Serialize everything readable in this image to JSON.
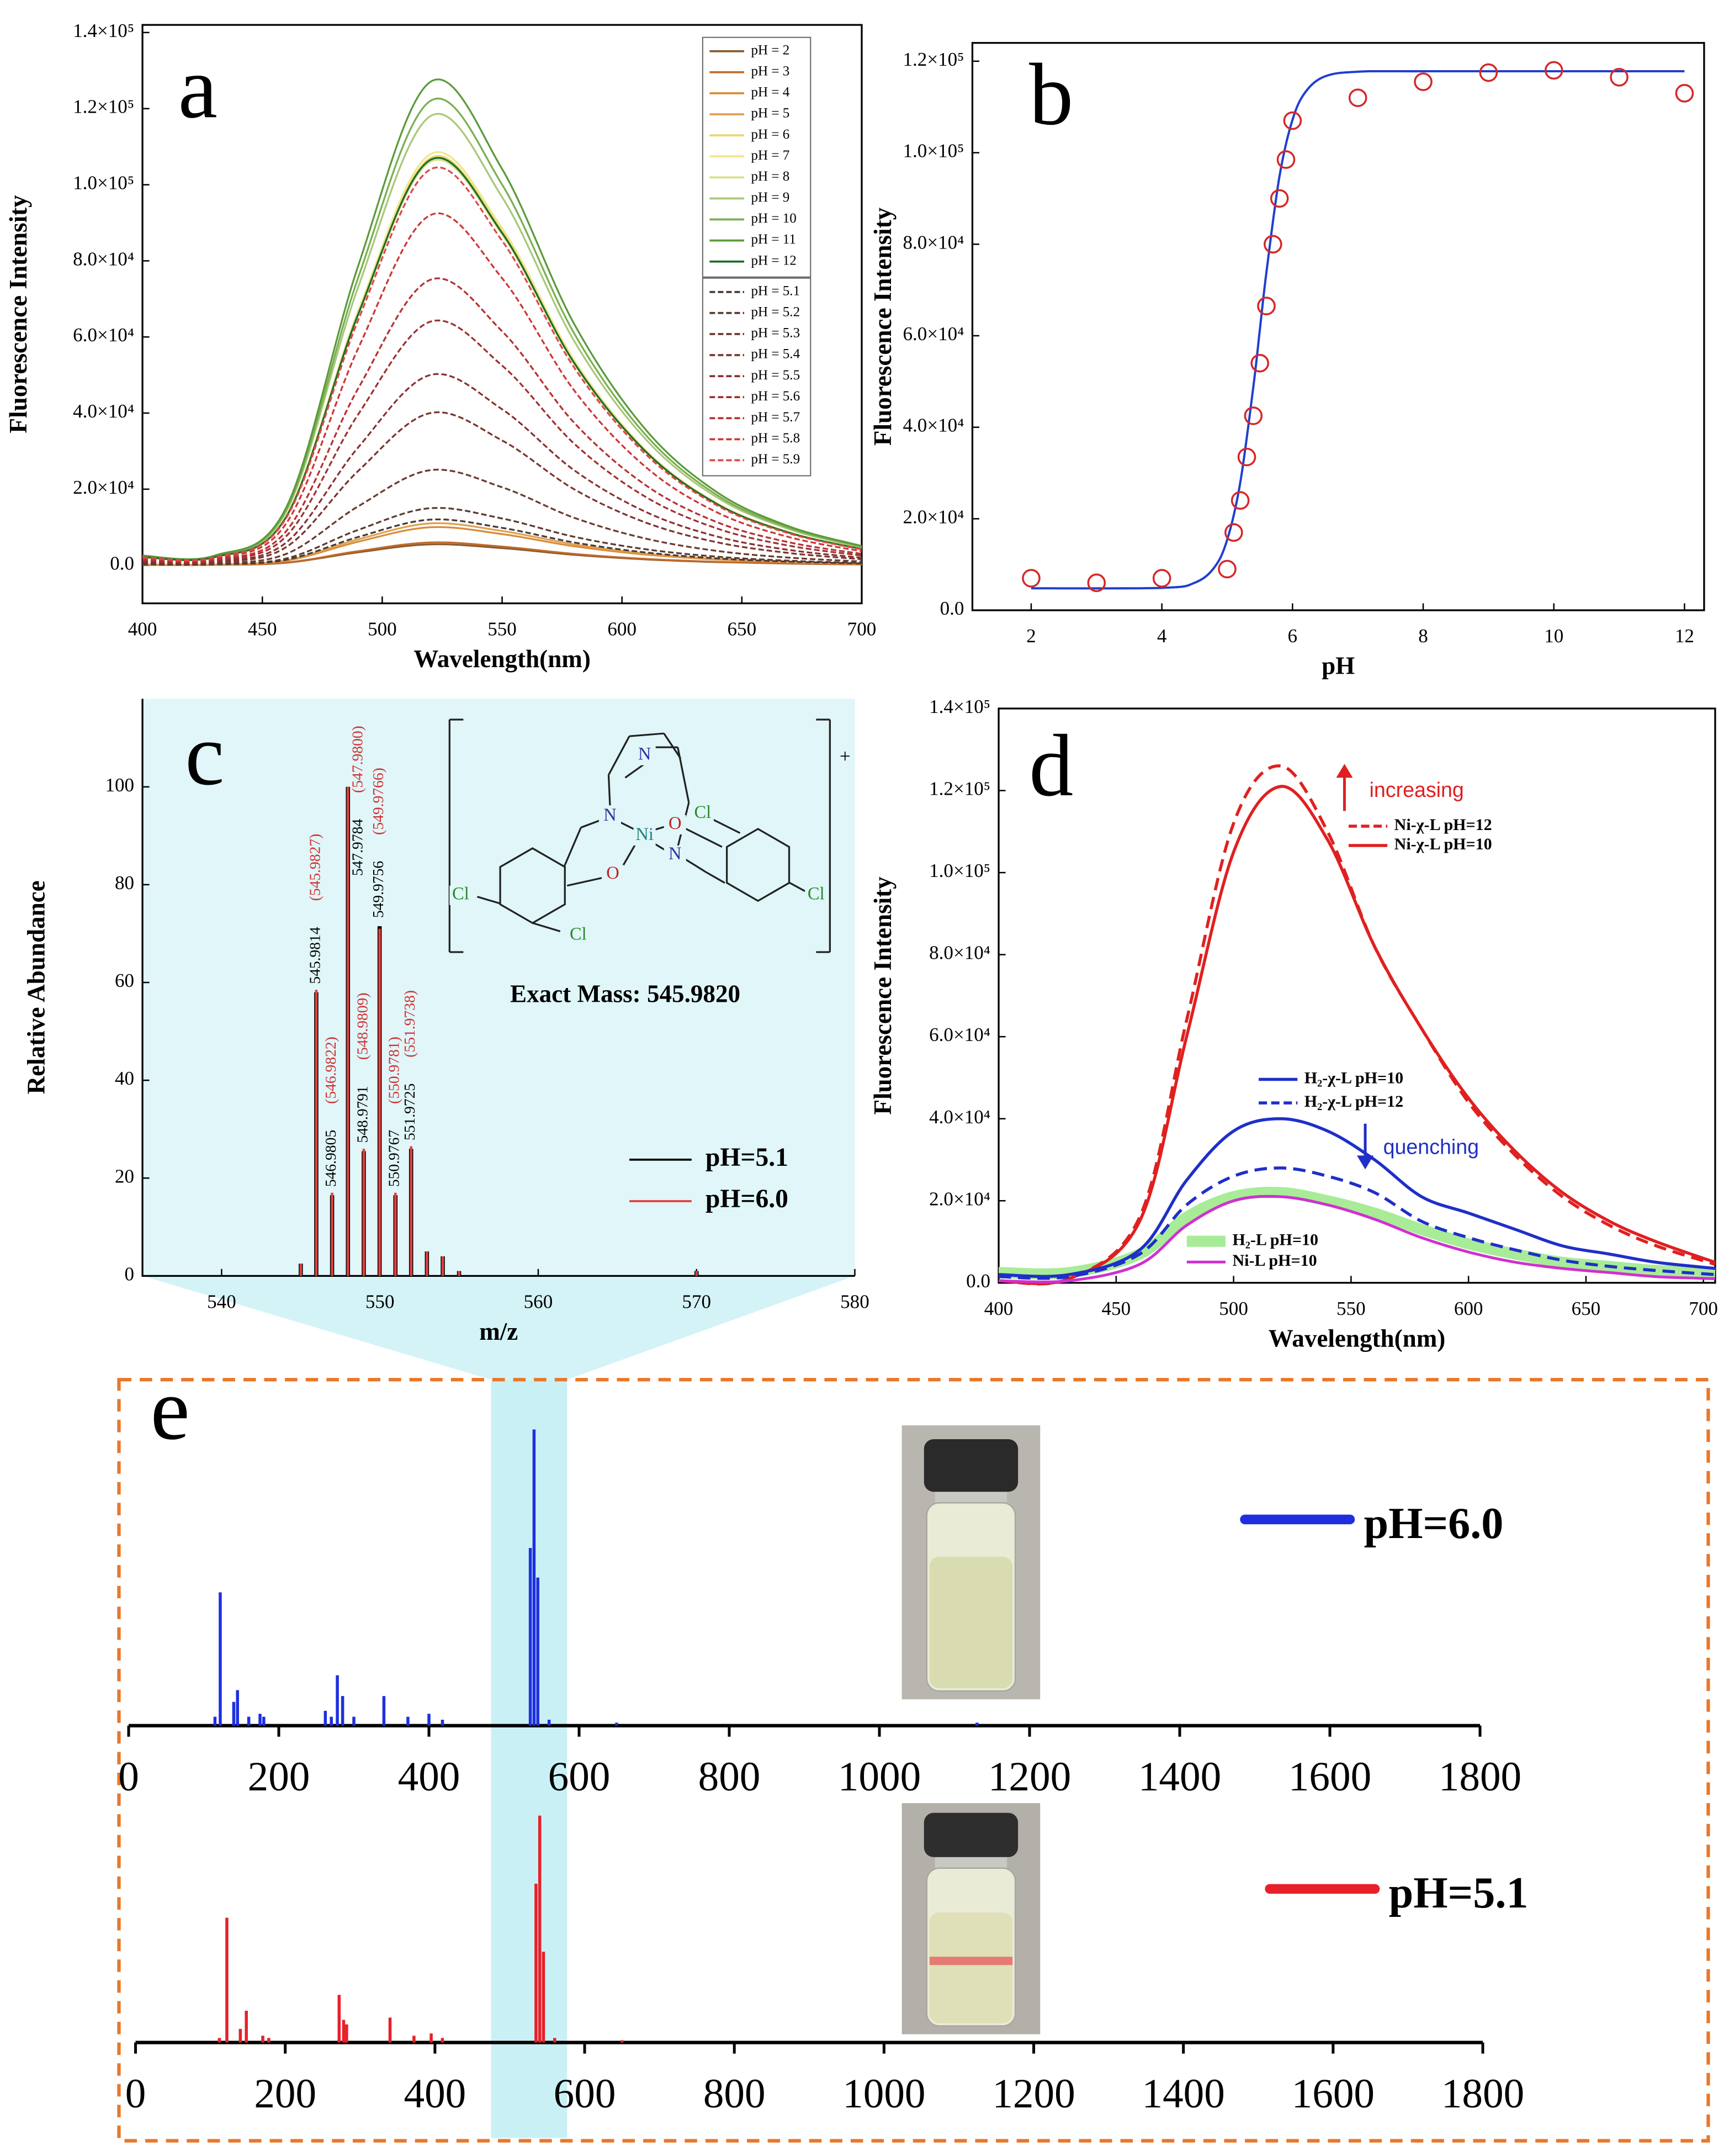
{
  "chart_data": [
    {
      "type": "line",
      "panel_label": "a",
      "x_label": "Wavelength(nm)",
      "y_label": "Fluorescence Intensity",
      "x": [
        400,
        430,
        460,
        490,
        520,
        550,
        580,
        610,
        640,
        670,
        700
      ],
      "xlim": [
        400,
        700
      ],
      "xticks": [
        400,
        450,
        500,
        550,
        600,
        650,
        700
      ],
      "ylim": [
        -10000,
        142000
      ],
      "yticks": [
        {
          "value": 0,
          "label": "0.0"
        },
        {
          "value": 20000,
          "label": "2.0×10⁴"
        },
        {
          "value": 40000,
          "label": "4.0×10⁴"
        },
        {
          "value": 60000,
          "label": "6.0×10⁴"
        },
        {
          "value": 80000,
          "label": "8.0×10⁴"
        },
        {
          "value": 100000,
          "label": "1.0×10⁵"
        },
        {
          "value": 120000,
          "label": "1.2×10⁵"
        },
        {
          "value": 140000,
          "label": "1.4×10⁵"
        }
      ],
      "legend": "upper right",
      "series": [
        {
          "name": "pH = 2",
          "color": "#8b5a2b",
          "dashed": false,
          "values": [
            110,
            110,
            660,
            3410,
            5500,
            4510,
            2750,
            1540,
            825,
            440,
            220
          ]
        },
        {
          "name": "pH = 3",
          "color": "#c06a2b",
          "dashed": false,
          "values": [
            120,
            120,
            720,
            3720,
            6000,
            4920,
            3000,
            1680,
            900,
            480,
            240
          ]
        },
        {
          "name": "pH = 4",
          "color": "#d98b3a",
          "dashed": false,
          "values": [
            200,
            200,
            1200,
            6200,
            10000,
            8200,
            5000,
            2800,
            1500,
            800,
            400
          ]
        },
        {
          "name": "pH = 5",
          "color": "#e0a050",
          "dashed": false,
          "values": [
            220,
            220,
            1320,
            6820,
            11000,
            9020,
            5500,
            3080,
            1650,
            880,
            440
          ]
        },
        {
          "name": "pH = 6",
          "color": "#e8d870",
          "dashed": false,
          "values": [
            2140,
            2140,
            12840,
            66340,
            107000,
            87740,
            53500,
            29960,
            16050,
            8560,
            4280
          ]
        },
        {
          "name": "pH = 7",
          "color": "#f0e68c",
          "dashed": false,
          "values": [
            2160,
            2160,
            12960,
            66960,
            108000,
            88560,
            54000,
            30240,
            16200,
            8640,
            4320
          ]
        },
        {
          "name": "pH = 8",
          "color": "#d8e08a",
          "dashed": false,
          "values": [
            2120,
            2120,
            12720,
            65720,
            106000,
            86920,
            53000,
            29680,
            15900,
            8480,
            4240
          ]
        },
        {
          "name": "pH = 9",
          "color": "#a8c878",
          "dashed": false,
          "values": [
            2360,
            2360,
            14160,
            73160,
            118000,
            96760,
            59000,
            33040,
            17700,
            9440,
            4720
          ]
        },
        {
          "name": "pH = 10",
          "color": "#7aaf50",
          "dashed": false,
          "values": [
            2440,
            2440,
            14640,
            75640,
            122000,
            100040,
            61000,
            34160,
            18300,
            9760,
            4880
          ]
        },
        {
          "name": "pH = 11",
          "color": "#5a9a3a",
          "dashed": false,
          "values": [
            2540,
            2540,
            15240,
            78740,
            127000,
            104140,
            63500,
            35560,
            19050,
            10160,
            5080
          ]
        },
        {
          "name": "pH = 12",
          "color": "#1e6b2a",
          "dashed": false,
          "values": [
            2130,
            2130,
            12780,
            66030,
            106500,
            87330,
            53250,
            29820,
            15980,
            8520,
            4260
          ]
        },
        {
          "name": "pH = 5.1",
          "color": "#4a3a30",
          "dashed": true,
          "values": [
            240,
            240,
            1440,
            7440,
            12000,
            9840,
            6000,
            3360,
            1800,
            960,
            480
          ]
        },
        {
          "name": "pH = 5.2",
          "color": "#5a3a30",
          "dashed": true,
          "values": [
            300,
            300,
            1800,
            9300,
            15000,
            12300,
            7500,
            4200,
            2250,
            1200,
            600
          ]
        },
        {
          "name": "pH = 5.3",
          "color": "#6b3a2e",
          "dashed": true,
          "values": [
            500,
            500,
            3000,
            15500,
            25000,
            20500,
            12500,
            7000,
            3750,
            2000,
            1000
          ]
        },
        {
          "name": "pH = 5.4",
          "color": "#7a3530",
          "dashed": true,
          "values": [
            800,
            800,
            4800,
            24800,
            40000,
            32800,
            20000,
            11200,
            6000,
            3200,
            1600
          ]
        },
        {
          "name": "pH = 5.5",
          "color": "#8b3030",
          "dashed": true,
          "values": [
            1000,
            1000,
            6000,
            31000,
            50000,
            41000,
            25000,
            14000,
            7500,
            4000,
            2000
          ]
        },
        {
          "name": "pH = 5.6",
          "color": "#a03030",
          "dashed": true,
          "values": [
            1280,
            1280,
            7680,
            39680,
            64000,
            52480,
            32000,
            17920,
            9600,
            5120,
            2560
          ]
        },
        {
          "name": "pH = 5.7",
          "color": "#b83030",
          "dashed": true,
          "values": [
            1500,
            1500,
            9000,
            46500,
            75000,
            61500,
            37500,
            21000,
            11250,
            6000,
            3000
          ]
        },
        {
          "name": "pH = 5.8",
          "color": "#d03535",
          "dashed": true,
          "values": [
            1840,
            1840,
            11040,
            57040,
            92000,
            75440,
            46000,
            25760,
            13800,
            7360,
            3680
          ]
        },
        {
          "name": "pH = 5.9",
          "color": "#e04848",
          "dashed": true,
          "values": [
            2080,
            2080,
            12480,
            64480,
            104000,
            85280,
            52000,
            29120,
            15600,
            8320,
            4160
          ]
        }
      ]
    },
    {
      "type": "scatter",
      "panel_label": "b",
      "x_label": "pH",
      "y_label": "Fluorescence Intensity",
      "xlim": [
        1.1,
        12.3
      ],
      "xticks": [
        2,
        4,
        6,
        8,
        10,
        12
      ],
      "ylim": [
        0,
        124000
      ],
      "yticks": [
        {
          "value": 0,
          "label": "0.0"
        },
        {
          "value": 20000,
          "label": "2.0×10⁴"
        },
        {
          "value": 40000,
          "label": "4.0×10⁴"
        },
        {
          "value": 60000,
          "label": "6.0×10⁴"
        },
        {
          "value": 80000,
          "label": "8.0×10⁴"
        },
        {
          "value": 100000,
          "label": "1.0×10⁵"
        },
        {
          "value": 120000,
          "label": "1.2×10⁵"
        }
      ],
      "points": {
        "color": "#d62728",
        "x": [
          2,
          3,
          4,
          5,
          5.1,
          5.2,
          5.3,
          5.4,
          5.5,
          5.6,
          5.7,
          5.8,
          5.9,
          6,
          7,
          8,
          9,
          10,
          11,
          12
        ],
        "values": [
          7000,
          6000,
          7000,
          9000,
          17000,
          24000,
          33500,
          42500,
          54000,
          66500,
          80000,
          90000,
          98500,
          107000,
          112000,
          115500,
          117500,
          118000,
          116500,
          113000
        ]
      },
      "fit": {
        "color": "#1f3fcf",
        "x": [
          2,
          4,
          4.5,
          4.8,
          5,
          5.2,
          5.4,
          5.5,
          5.6,
          5.8,
          6,
          6.2,
          6.5,
          7,
          8,
          12
        ],
        "values": [
          4800,
          4900,
          6000,
          9300,
          15400,
          27900,
          48800,
          61300,
          73800,
          94800,
          107200,
          113300,
          116700,
          117700,
          117800,
          117800
        ]
      }
    },
    {
      "type": "stick",
      "panel_label": "c",
      "x_label": "m/z",
      "y_label": "Relative Abundance",
      "xlim": [
        535,
        580
      ],
      "xticks": [
        540,
        550,
        560,
        570,
        580
      ],
      "ylim": [
        0,
        118
      ],
      "yticks": [
        0,
        20,
        40,
        60,
        80,
        100
      ],
      "background": "#e0f6f9",
      "series": [
        {
          "name": "pH=5.1",
          "color": "#000000",
          "x": [
            545.0,
            545.98,
            546.98,
            547.98,
            548.98,
            549.98,
            550.98,
            551.97,
            552.97,
            553.97,
            555.0,
            570.0
          ],
          "values": [
            2.5,
            58,
            16.5,
            100,
            25.5,
            71.5,
            16.5,
            26,
            5,
            4,
            1,
            1
          ]
        },
        {
          "name": "pH=6.0",
          "color": "#e04040",
          "x": [
            545.0,
            545.98,
            546.98,
            547.98,
            548.98,
            549.98,
            550.98,
            551.97,
            552.97,
            553.97,
            555.0,
            570.0
          ],
          "values": [
            2.5,
            58.5,
            17,
            100,
            26,
            71,
            17,
            26.5,
            5,
            4,
            1,
            1
          ]
        }
      ],
      "peak_labels": [
        {
          "measured": "545.9814",
          "calculated": "(545.9827)"
        },
        {
          "measured": "546.9805",
          "calculated": "(546.9822)"
        },
        {
          "measured": "547.9784",
          "calculated": "(547.9800)"
        },
        {
          "measured": "548.9791",
          "calculated": "(548.9809)"
        },
        {
          "measured": "549.9756",
          "calculated": "(549.9766)"
        },
        {
          "measured": "550.9767",
          "calculated": "(550.9781)"
        },
        {
          "measured": "551.9725",
          "calculated": "(551.9738)"
        }
      ],
      "structure": {
        "atoms": [
          "N",
          "N",
          "Ni",
          "O",
          "O",
          "N",
          "Cl",
          "Cl",
          "Cl",
          "Cl"
        ],
        "charge": "+"
      },
      "annotation": "Exact Mass: 545.9820"
    },
    {
      "type": "line",
      "panel_label": "d",
      "x_label": "Wavelength(nm)",
      "y_label": "Fluorescence Intensity",
      "x": [
        400,
        430,
        460,
        480,
        500,
        520,
        540,
        560,
        580,
        600,
        620,
        640,
        660,
        680,
        705
      ],
      "xlim": [
        400,
        705
      ],
      "xticks": [
        400,
        450,
        500,
        550,
        600,
        650,
        700
      ],
      "ylim": [
        0,
        140000
      ],
      "yticks": [
        {
          "value": 0,
          "label": "0.0"
        },
        {
          "value": 20000,
          "label": "2.0×10⁴"
        },
        {
          "value": 40000,
          "label": "4.0×10⁴"
        },
        {
          "value": 60000,
          "label": "6.0×10⁴"
        },
        {
          "value": 80000,
          "label": "8.0×10⁴"
        },
        {
          "value": 100000,
          "label": "1.0×10⁵"
        },
        {
          "value": 120000,
          "label": "1.2×10⁵"
        },
        {
          "value": 140000,
          "label": "1.4×10⁵"
        }
      ],
      "series": [
        {
          "name": "Ni-χ-L pH=12",
          "color": "#e02020",
          "dashed": true,
          "line_width": 2.2,
          "values": [
            500,
            1000,
            16000,
            64000,
            112000,
            126000,
            110000,
            82000,
            62000,
            44000,
            31000,
            21000,
            14000,
            9000,
            4500
          ]
        },
        {
          "name": "Ni-χ-L pH=10",
          "color": "#e02020",
          "dashed": false,
          "line_width": 2.2,
          "values": [
            500,
            1000,
            15000,
            60000,
            105000,
            121000,
            108000,
            82000,
            62000,
            45000,
            32000,
            22000,
            15000,
            10000,
            5000
          ]
        },
        {
          "name": "H₂-χ-L pH=10",
          "color": "#1f2fc8",
          "dashed": false,
          "line_width": 2.2,
          "values": [
            2000,
            2000,
            8000,
            25000,
            37000,
            40000,
            37000,
            30000,
            21000,
            17000,
            13000,
            9000,
            7000,
            5000,
            3500
          ]
        },
        {
          "name": "H₂-χ-L pH=12",
          "color": "#1f2fc8",
          "dashed": true,
          "line_width": 2.2,
          "values": [
            1500,
            1500,
            7000,
            19000,
            26000,
            28000,
            26000,
            22000,
            15000,
            11000,
            8000,
            5500,
            4000,
            3000,
            2000
          ]
        },
        {
          "name": "H₂-L pH=10",
          "color": "#a8ec98",
          "dashed": false,
          "line_width": 8,
          "values": [
            2500,
            2500,
            7000,
            16000,
            21000,
            22000,
            20000,
            17000,
            13000,
            9500,
            7000,
            5000,
            4000,
            3000,
            2500
          ]
        },
        {
          "name": "Ni-L  pH=10",
          "color": "#d030d0",
          "dashed": false,
          "line_width": 2,
          "values": [
            500,
            500,
            4500,
            14000,
            20000,
            21000,
            19000,
            15500,
            11000,
            7500,
            5000,
            3500,
            2500,
            1500,
            1000
          ]
        }
      ],
      "annotations": [
        "increasing",
        "quenching"
      ]
    },
    {
      "type": "stick",
      "panel_label": "e",
      "xlim": [
        0,
        1800
      ],
      "xticks": [
        0,
        200,
        400,
        600,
        800,
        1000,
        1200,
        1400,
        1600,
        1800
      ],
      "ylim": [
        0,
        100
      ],
      "series": [
        {
          "name": "pH=6.0",
          "color": "#1f2fe0",
          "x": [
            115,
            122,
            140,
            145,
            160,
            175,
            180,
            262,
            270,
            278,
            285,
            300,
            340,
            372,
            400,
            418,
            535,
            540,
            545,
            560,
            650,
            1130
          ],
          "values": [
            3,
            45,
            8,
            12,
            3,
            4,
            3,
            5,
            3,
            17,
            10,
            3,
            10,
            3,
            4,
            2,
            60,
            100,
            50,
            2,
            1,
            1
          ]
        },
        {
          "name": "pH=5.1",
          "color": "#e8202a",
          "x": [
            112,
            122,
            140,
            148,
            170,
            178,
            272,
            278,
            282,
            340,
            372,
            395,
            410,
            535,
            540,
            545,
            560,
            650
          ],
          "values": [
            2,
            55,
            6,
            14,
            3,
            2,
            21,
            10,
            8,
            11,
            3,
            4,
            2,
            70,
            100,
            40,
            2,
            1
          ]
        }
      ]
    }
  ]
}
